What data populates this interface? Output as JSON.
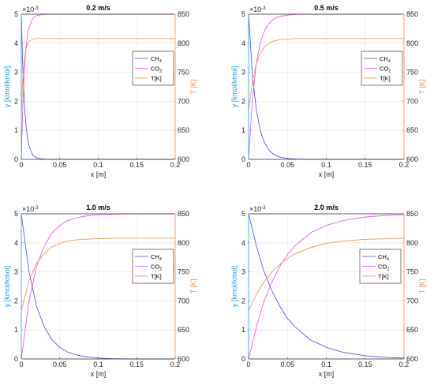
{
  "colors": {
    "ch4": "#4747e6",
    "co2": "#e64ce6",
    "t": "#f28c40",
    "left_axis": "#1a9ddc",
    "right_axis": "#f28c40"
  },
  "chart_data": [
    {
      "type": "line",
      "title": "0.2 m/s",
      "xlabel": "x [m]",
      "ylabel": "y [kmol/kmol]",
      "ylabel_right": "T [K]",
      "y_exponent_label": "×10",
      "y_exponent_power": "-3",
      "xlim": [
        0,
        0.2
      ],
      "ylim": [
        0,
        5
      ],
      "ylim_right": [
        600,
        850
      ],
      "xticks": [
        0,
        0.05,
        0.1,
        0.15,
        0.2
      ],
      "xtick_labels": [
        "0",
        "0.05",
        "0.1",
        "0.15",
        "0.2"
      ],
      "yticks": [
        0,
        1,
        2,
        3,
        4,
        5
      ],
      "ytick_labels": [
        "0",
        "1",
        "2",
        "3",
        "4",
        "5"
      ],
      "yticks_right": [
        600,
        650,
        700,
        750,
        800,
        850
      ],
      "ytick_labels_right": [
        "600",
        "650",
        "700",
        "750",
        "800",
        "850"
      ],
      "legend_position": "right-middle",
      "grid": true,
      "series": [
        {
          "name": "CH4",
          "legend_main": "CH",
          "legend_sub": "4",
          "axis": "left",
          "x": [
            0,
            0.002,
            0.004,
            0.006,
            0.008,
            0.01,
            0.015,
            0.02,
            0.025,
            0.03,
            0.04,
            0.05,
            0.1,
            0.2
          ],
          "values": [
            5.0,
            3.1,
            1.9,
            1.2,
            0.75,
            0.46,
            0.14,
            0.05,
            0.02,
            0.005,
            0.002,
            0.0,
            0.0,
            0.0
          ]
        },
        {
          "name": "CO2",
          "legend_main": "CO",
          "legend_sub": "2",
          "axis": "left",
          "x": [
            0,
            0.002,
            0.004,
            0.006,
            0.008,
            0.01,
            0.015,
            0.02,
            0.025,
            0.03,
            0.04,
            0.05,
            0.1,
            0.2
          ],
          "values": [
            0.0,
            1.9,
            3.1,
            3.8,
            4.25,
            4.54,
            4.86,
            4.95,
            4.98,
            4.995,
            5.0,
            5.0,
            5.0,
            5.0
          ]
        },
        {
          "name": "T[K]",
          "legend_main": "T[K]",
          "legend_sub": "",
          "axis": "right",
          "x": [
            0,
            0.002,
            0.004,
            0.006,
            0.008,
            0.01,
            0.015,
            0.02,
            0.03,
            0.05,
            0.1,
            0.2
          ],
          "values": [
            683,
            740,
            772,
            789,
            798,
            803,
            807,
            808,
            808,
            808,
            808,
            808
          ]
        }
      ]
    },
    {
      "type": "line",
      "title": "0.5 m/s",
      "xlabel": "x [m]",
      "ylabel": "y [kmol/kmol]",
      "ylabel_right": "T [K]",
      "y_exponent_label": "×10",
      "y_exponent_power": "-3",
      "xlim": [
        0,
        0.2
      ],
      "ylim": [
        0,
        5
      ],
      "ylim_right": [
        600,
        850
      ],
      "xticks": [
        0,
        0.05,
        0.1,
        0.15,
        0.2
      ],
      "xtick_labels": [
        "0",
        "0.05",
        "0.1",
        "0.15",
        "0.2"
      ],
      "yticks": [
        0,
        1,
        2,
        3,
        4,
        5
      ],
      "ytick_labels": [
        "0",
        "1",
        "2",
        "3",
        "4",
        "5"
      ],
      "yticks_right": [
        600,
        650,
        700,
        750,
        800,
        850
      ],
      "ytick_labels_right": [
        "600",
        "650",
        "700",
        "750",
        "800",
        "850"
      ],
      "legend_position": "right-middle",
      "grid": true,
      "series": [
        {
          "name": "CH4",
          "legend_main": "CH",
          "legend_sub": "4",
          "axis": "left",
          "x": [
            0,
            0.005,
            0.01,
            0.015,
            0.02,
            0.025,
            0.03,
            0.035,
            0.04,
            0.05,
            0.06,
            0.08,
            0.1,
            0.2
          ],
          "values": [
            5.0,
            2.9,
            1.7,
            1.0,
            0.6,
            0.36,
            0.22,
            0.13,
            0.08,
            0.03,
            0.01,
            0.0,
            0.0,
            0.0
          ]
        },
        {
          "name": "CO2",
          "legend_main": "CO",
          "legend_sub": "2",
          "axis": "left",
          "x": [
            0,
            0.005,
            0.01,
            0.015,
            0.02,
            0.025,
            0.03,
            0.035,
            0.04,
            0.05,
            0.06,
            0.08,
            0.1,
            0.2
          ],
          "values": [
            0.0,
            2.1,
            3.3,
            4.0,
            4.4,
            4.64,
            4.78,
            4.87,
            4.92,
            4.97,
            4.99,
            5.0,
            5.0,
            5.0
          ]
        },
        {
          "name": "T[K]",
          "legend_main": "T[K]",
          "legend_sub": "",
          "axis": "right",
          "x": [
            0,
            0.005,
            0.01,
            0.015,
            0.02,
            0.025,
            0.03,
            0.04,
            0.05,
            0.06,
            0.08,
            0.1,
            0.2
          ],
          "values": [
            683,
            735,
            765,
            782,
            793,
            799,
            803,
            806,
            807,
            808,
            808,
            808,
            808
          ]
        }
      ]
    },
    {
      "type": "line",
      "title": "1.0 m/s",
      "xlabel": "x [m]",
      "ylabel": "y [kmol/kmol]",
      "ylabel_right": "T [K]",
      "y_exponent_label": "×10",
      "y_exponent_power": "-3",
      "xlim": [
        0,
        0.2
      ],
      "ylim": [
        0,
        5
      ],
      "ylim_right": [
        600,
        850
      ],
      "xticks": [
        0,
        0.05,
        0.1,
        0.15,
        0.2
      ],
      "xtick_labels": [
        "0",
        "0.05",
        "0.1",
        "0.15",
        "0.2"
      ],
      "yticks": [
        0,
        1,
        2,
        3,
        4,
        5
      ],
      "ytick_labels": [
        "0",
        "1",
        "2",
        "3",
        "4",
        "5"
      ],
      "yticks_right": [
        600,
        650,
        700,
        750,
        800,
        850
      ],
      "ytick_labels_right": [
        "600",
        "650",
        "700",
        "750",
        "800",
        "850"
      ],
      "legend_position": "right-middle",
      "grid": true,
      "series": [
        {
          "name": "CH4",
          "legend_main": "CH",
          "legend_sub": "4",
          "axis": "left",
          "x": [
            0,
            0.01,
            0.02,
            0.03,
            0.04,
            0.05,
            0.06,
            0.07,
            0.08,
            0.1,
            0.12,
            0.15,
            0.2
          ],
          "values": [
            5.0,
            3.0,
            1.8,
            1.1,
            0.66,
            0.4,
            0.24,
            0.15,
            0.09,
            0.03,
            0.01,
            0.0,
            0.0
          ]
        },
        {
          "name": "CO2",
          "legend_main": "CO",
          "legend_sub": "2",
          "axis": "left",
          "x": [
            0,
            0.01,
            0.02,
            0.03,
            0.04,
            0.05,
            0.06,
            0.07,
            0.08,
            0.1,
            0.12,
            0.15,
            0.2
          ],
          "values": [
            0.0,
            2.0,
            3.2,
            3.9,
            4.34,
            4.6,
            4.76,
            4.85,
            4.91,
            4.97,
            4.99,
            5.0,
            5.0
          ]
        },
        {
          "name": "T[K]",
          "legend_main": "T[K]",
          "legend_sub": "",
          "axis": "right",
          "x": [
            0,
            0.01,
            0.02,
            0.03,
            0.04,
            0.05,
            0.06,
            0.07,
            0.08,
            0.1,
            0.12,
            0.15,
            0.2
          ],
          "values": [
            683,
            735,
            765,
            782,
            793,
            799,
            803,
            805,
            806,
            807,
            808,
            808,
            808
          ]
        }
      ]
    },
    {
      "type": "line",
      "title": "2.0 m/s",
      "xlabel": "x [m]",
      "ylabel": "y [kmol/kmol]",
      "ylabel_right": "T [K]",
      "y_exponent_label": "×10",
      "y_exponent_power": "-3",
      "xlim": [
        0,
        0.2
      ],
      "ylim": [
        0,
        5
      ],
      "ylim_right": [
        600,
        850
      ],
      "xticks": [
        0,
        0.05,
        0.1,
        0.15,
        0.2
      ],
      "xtick_labels": [
        "0",
        "0.05",
        "0.1",
        "0.15",
        "0.2"
      ],
      "yticks": [
        0,
        1,
        2,
        3,
        4,
        5
      ],
      "ytick_labels": [
        "0",
        "1",
        "2",
        "3",
        "4",
        "5"
      ],
      "yticks_right": [
        600,
        650,
        700,
        750,
        800,
        850
      ],
      "ytick_labels_right": [
        "600",
        "650",
        "700",
        "750",
        "800",
        "850"
      ],
      "legend_position": "right-middle",
      "grid": true,
      "series": [
        {
          "name": "CH4",
          "legend_main": "CH",
          "legend_sub": "4",
          "axis": "left",
          "x": [
            0,
            0.01,
            0.02,
            0.03,
            0.04,
            0.05,
            0.06,
            0.08,
            0.1,
            0.12,
            0.15,
            0.18,
            0.2
          ],
          "values": [
            5.0,
            3.9,
            3.0,
            2.35,
            1.82,
            1.4,
            1.1,
            0.65,
            0.4,
            0.24,
            0.11,
            0.05,
            0.03
          ]
        },
        {
          "name": "CO2",
          "legend_main": "CO",
          "legend_sub": "2",
          "axis": "left",
          "x": [
            0,
            0.01,
            0.02,
            0.03,
            0.04,
            0.05,
            0.06,
            0.08,
            0.1,
            0.12,
            0.15,
            0.18,
            0.2
          ],
          "values": [
            0.0,
            1.1,
            2.0,
            2.65,
            3.18,
            3.6,
            3.9,
            4.35,
            4.6,
            4.76,
            4.89,
            4.95,
            4.97
          ]
        },
        {
          "name": "T[K]",
          "legend_main": "T[K]",
          "legend_sub": "",
          "axis": "right",
          "x": [
            0,
            0.01,
            0.02,
            0.03,
            0.04,
            0.05,
            0.06,
            0.08,
            0.1,
            0.12,
            0.15,
            0.18,
            0.2
          ],
          "values": [
            683,
            711,
            733,
            750,
            763,
            773,
            781,
            792,
            799,
            803,
            806,
            807,
            808
          ]
        }
      ]
    }
  ]
}
